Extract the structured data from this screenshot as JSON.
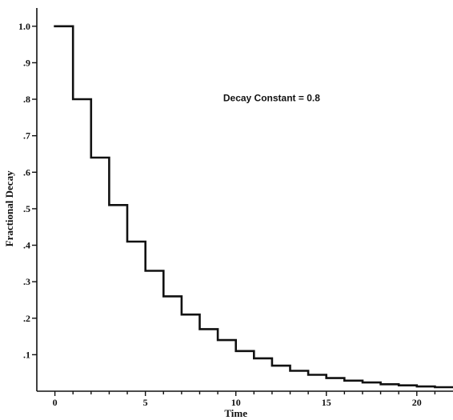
{
  "chart_data": {
    "type": "line",
    "style": "step",
    "title": "",
    "xlabel": "Time",
    "ylabel": "Fractional Decay",
    "annotation": "Decay Constant = 0.8",
    "xlim": [
      -1,
      22
    ],
    "ylim": [
      0,
      1.05
    ],
    "x_ticks": [
      0,
      5,
      10,
      15,
      20
    ],
    "x_minor_ticks": [
      1,
      2,
      3,
      4,
      6,
      7,
      8,
      9,
      11,
      12,
      13,
      14,
      16,
      17,
      18,
      19,
      21
    ],
    "x_tick_labels": [
      "0",
      "5",
      "10",
      "15",
      "20"
    ],
    "y_ticks": [
      0.1,
      0.2,
      0.3,
      0.4,
      0.5,
      0.6,
      0.7,
      0.8,
      0.9,
      1.0
    ],
    "y_tick_labels": [
      ".1",
      ".2",
      ".3",
      ".4",
      ".5",
      ".6",
      ".7",
      ".8",
      ".9",
      "1.0"
    ],
    "grid": false,
    "series": [
      {
        "x": [
          0,
          1,
          2,
          3,
          4,
          5,
          6,
          7,
          8,
          9,
          10,
          11,
          12,
          13,
          14,
          15,
          16,
          17,
          18,
          19,
          20,
          21,
          22
        ],
        "values": [
          1.0,
          0.8,
          0.64,
          0.51,
          0.41,
          0.33,
          0.26,
          0.21,
          0.17,
          0.14,
          0.11,
          0.09,
          0.07,
          0.056,
          0.045,
          0.036,
          0.029,
          0.024,
          0.019,
          0.016,
          0.013,
          0.011,
          0.011
        ]
      }
    ],
    "color": "#111111"
  }
}
